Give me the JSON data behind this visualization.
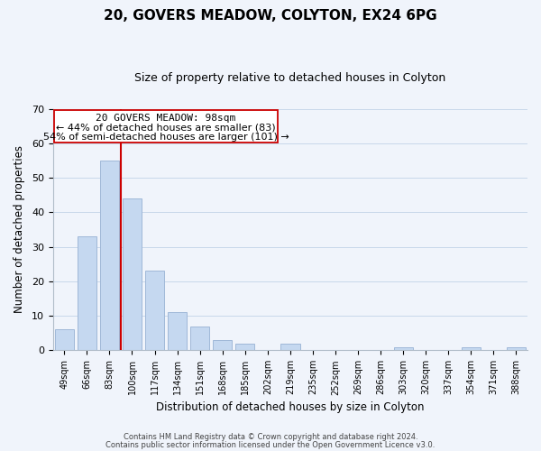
{
  "title": "20, GOVERS MEADOW, COLYTON, EX24 6PG",
  "subtitle": "Size of property relative to detached houses in Colyton",
  "xlabel": "Distribution of detached houses by size in Colyton",
  "ylabel": "Number of detached properties",
  "bar_labels": [
    "49sqm",
    "66sqm",
    "83sqm",
    "100sqm",
    "117sqm",
    "134sqm",
    "151sqm",
    "168sqm",
    "185sqm",
    "202sqm",
    "219sqm",
    "235sqm",
    "252sqm",
    "269sqm",
    "286sqm",
    "303sqm",
    "320sqm",
    "337sqm",
    "354sqm",
    "371sqm",
    "388sqm"
  ],
  "bar_values": [
    6,
    33,
    55,
    44,
    23,
    11,
    7,
    3,
    2,
    0,
    2,
    0,
    0,
    0,
    0,
    1,
    0,
    0,
    1,
    0,
    1
  ],
  "bar_color": "#c5d8f0",
  "bar_edge_color": "#a0b8d8",
  "highlight_line_color": "#cc0000",
  "ylim": [
    0,
    70
  ],
  "yticks": [
    0,
    10,
    20,
    30,
    40,
    50,
    60,
    70
  ],
  "annotation_title": "20 GOVERS MEADOW: 98sqm",
  "annotation_line1": "← 44% of detached houses are smaller (83)",
  "annotation_line2": "54% of semi-detached houses are larger (101) →",
  "annotation_box_edge": "#cc0000",
  "footer_line1": "Contains HM Land Registry data © Crown copyright and database right 2024.",
  "footer_line2": "Contains public sector information licensed under the Open Government Licence v3.0.",
  "background_color": "#f0f4fb",
  "grid_color": "#c8d8ea",
  "title_fontsize": 11,
  "subtitle_fontsize": 9
}
